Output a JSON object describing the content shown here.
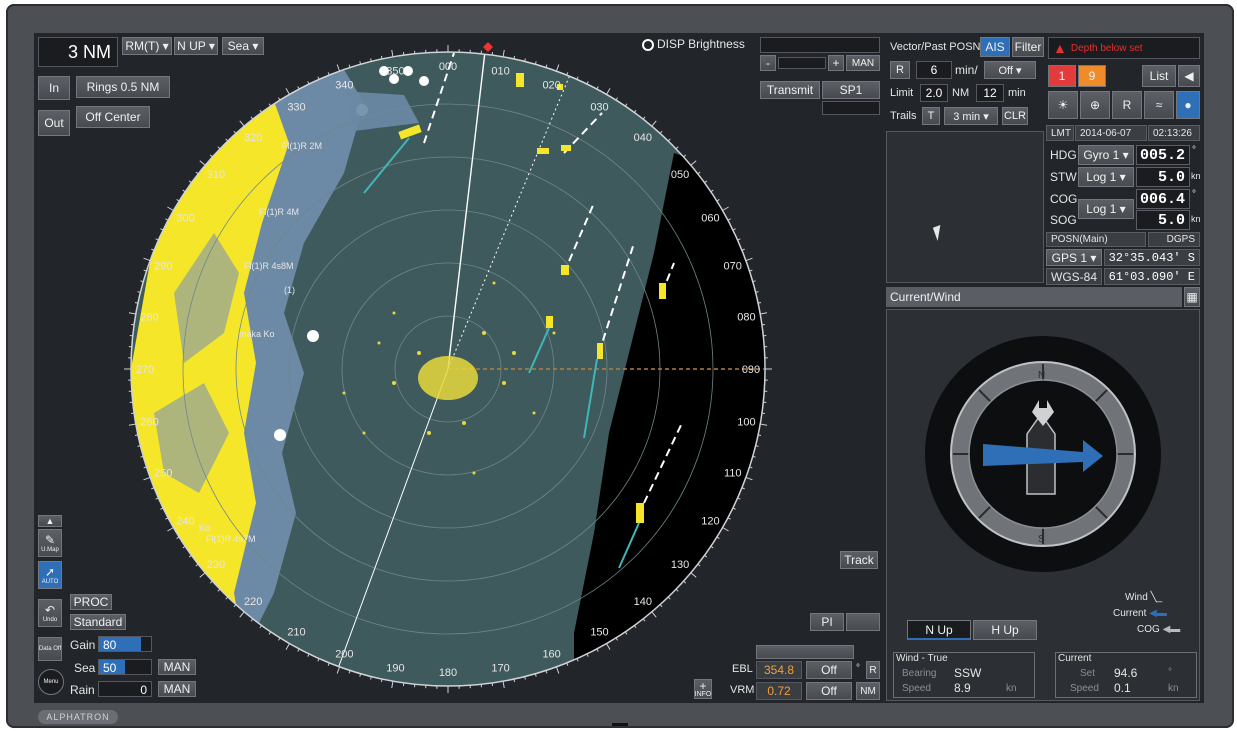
{
  "range": {
    "value": "3 NM"
  },
  "modes": {
    "motion": "RM(T) ▾",
    "orientation": "N UP ▾",
    "sea_mode": "Sea ▾"
  },
  "buttons": {
    "range_in": "In",
    "range_out": "Out",
    "rings": "Rings 0.5 NM",
    "off_center": "Off Center",
    "disp_brightness": "DISP Brightness",
    "transmit": "Transmit",
    "sp1": "SP1",
    "track": "Track",
    "pi": "PI",
    "proc": "PROC",
    "standard": "Standard",
    "man": "MAN",
    "n_up": "N Up",
    "h_up": "H Up",
    "list": "List"
  },
  "vector": {
    "title": "Vector/Past POSN",
    "ais": "AIS",
    "filter": "Filter",
    "r": "R",
    "min_value": "6",
    "min_unit": "min/",
    "off": "Off ▾",
    "limit_label": "Limit",
    "limit_value": "2.0",
    "limit_unit": "NM",
    "limit_min": "12",
    "limit_min_unit": "min",
    "trails_label": "Trails",
    "trails_t": "T",
    "trails_value": "3 min ▾",
    "clr": "CLR"
  },
  "alarm": {
    "text": "Depth below set",
    "count_red": "1",
    "count_orange": "9"
  },
  "nav": {
    "lmt_label": "LMT",
    "date": "2014-06-07",
    "time": "02:13:26",
    "hdg_label": "HDG",
    "hdg_source": "Gyro 1 ▾",
    "hdg_value": "005.2",
    "hdg_unit": "°",
    "stw_label": "STW",
    "stw_source": "Log 1 ▾",
    "stw_value": "5.0",
    "stw_unit": "kn",
    "cog_label": "COG",
    "cog_value": "006.4",
    "cog_unit": "°",
    "sog_label": "SOG",
    "sog_source": "Log 1 ▾",
    "sog_value": "5.0",
    "sog_unit": "kn",
    "posn_label": "POSN(Main)",
    "posn_type": "DGPS",
    "gps_source": "GPS 1 ▾",
    "lat": "32°35.043' S",
    "datum": "WGS-84",
    "lon": "61°03.090' E"
  },
  "current_wind": {
    "title": "Current/Wind",
    "legend_wind": "Wind",
    "legend_current": "Current",
    "legend_cog": "COG",
    "wind_title": "Wind - True",
    "bearing_label": "Bearing",
    "bearing_value": "SSW",
    "speed_label": "Speed",
    "wind_speed": "8.9",
    "kn": "kn",
    "current_title": "Current",
    "set_label": "Set",
    "set_value": "94.6",
    "deg": "°",
    "current_speed_label": "Speed",
    "current_speed": "0.1"
  },
  "controls": {
    "gain_label": "Gain",
    "gain_value": "80",
    "sea_label": "Sea",
    "sea_value": "50",
    "rain_label": "Rain",
    "rain_value": "0",
    "ebl_label": "EBL",
    "ebl_value": "354.8",
    "ebl_off": "Off",
    "vrm_label": "VRM",
    "vrm_value": "0.72",
    "vrm_off": "Off",
    "deg": "°",
    "r": "R",
    "nm": "NM"
  },
  "side_tools": {
    "umap": "U.Map",
    "auto": "AUTO",
    "undo": "Undo",
    "data_off": "Data Off",
    "menu": "Menu",
    "info": "INFO"
  },
  "bearing_scale": [
    "000",
    "010",
    "020",
    "030",
    "040",
    "050",
    "060",
    "070",
    "080",
    "090",
    "100",
    "110",
    "120",
    "130",
    "140",
    "150",
    "160",
    "170",
    "180",
    "190",
    "200",
    "210",
    "220",
    "230",
    "240",
    "250",
    "260",
    "270",
    "280",
    "290",
    "300",
    "310",
    "320",
    "330",
    "340",
    "350"
  ],
  "chart_labels": [
    "Fl(1)R 2M",
    "Fl(1)R 4M",
    "Fl(1)R 4s8M",
    "(1)",
    "Fl(1)R 4s7M",
    "maka Ko",
    "Ko"
  ],
  "brand": "ALPHATRON",
  "colors": {
    "sea": "#3f5a5c",
    "land": "#f6e62a",
    "shallow": "#6c89a5",
    "radar_echo": "#e8d93c",
    "accent_blue": "#2f6fb8"
  }
}
